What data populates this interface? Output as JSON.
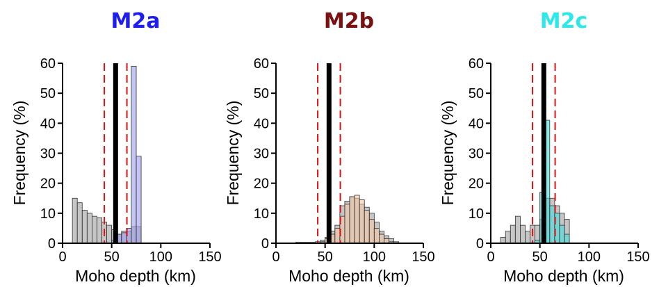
{
  "chart_data": [
    {
      "type": "bar",
      "title": "M2a",
      "title_color": "#1d1df0",
      "xlabel": "Moho depth (km)",
      "ylabel": "Frequency (%)",
      "xlim": [
        0,
        150
      ],
      "ylim": [
        0,
        60
      ],
      "xticks": [
        "0",
        "50",
        "100",
        "150"
      ],
      "yticks": [
        "0",
        "10",
        "20",
        "30",
        "40",
        "50",
        "60"
      ],
      "bin_width": 5,
      "legend": "none",
      "grid": false,
      "series": [
        {
          "color": "#a0a0a0",
          "bins": [
            [
              10,
              15
            ],
            [
              15,
              13.5
            ],
            [
              20,
              11
            ],
            [
              25,
              10
            ],
            [
              30,
              9
            ],
            [
              35,
              8.5
            ],
            [
              40,
              7
            ],
            [
              45,
              6
            ],
            [
              50,
              4.5
            ],
            [
              55,
              3
            ],
            [
              60,
              4
            ],
            [
              65,
              4
            ],
            [
              70,
              5.5
            ],
            [
              75,
              5.5
            ]
          ]
        },
        {
          "color": "#9c9cf0",
          "bins": [
            [
              50,
              1
            ],
            [
              55,
              3
            ],
            [
              60,
              3.5
            ],
            [
              65,
              5
            ],
            [
              70,
              59
            ],
            [
              75,
              29
            ]
          ]
        }
      ],
      "vlines": [
        {
          "x": 54,
          "style": "solid",
          "color": "#000000"
        },
        {
          "x": 42.5,
          "style": "dashed",
          "color": "#e01010"
        },
        {
          "x": 65.5,
          "style": "dashed",
          "color": "#e01010"
        }
      ]
    },
    {
      "type": "bar",
      "title": "M2b",
      "title_color": "#7a1010",
      "xlabel": "Moho depth (km)",
      "ylabel": "Frequency (%)",
      "xlim": [
        0,
        150
      ],
      "ylim": [
        0,
        60
      ],
      "xticks": [
        "0",
        "50",
        "100",
        "150"
      ],
      "yticks": [
        "0",
        "10",
        "20",
        "30",
        "40",
        "50",
        "60"
      ],
      "bin_width": 5,
      "legend": "none",
      "grid": false,
      "series": [
        {
          "color": "#a0a0a0",
          "bins": [
            [
              20,
              0.3
            ],
            [
              25,
              0.3
            ],
            [
              30,
              0.3
            ],
            [
              35,
              0.3
            ],
            [
              40,
              0.5
            ],
            [
              45,
              1
            ],
            [
              50,
              2
            ],
            [
              55,
              4
            ],
            [
              60,
              6
            ],
            [
              65,
              12.5
            ],
            [
              70,
              14
            ],
            [
              75,
              15.5
            ],
            [
              80,
              15
            ],
            [
              85,
              13
            ],
            [
              90,
              12
            ],
            [
              95,
              10
            ],
            [
              100,
              7
            ],
            [
              105,
              4
            ],
            [
              110,
              2.5
            ],
            [
              115,
              1.5
            ],
            [
              120,
              0.5
            ]
          ]
        },
        {
          "color": "#f5c8a5",
          "bins": [
            [
              45,
              0.5
            ],
            [
              50,
              1.5
            ],
            [
              55,
              3
            ],
            [
              60,
              5
            ],
            [
              65,
              9
            ],
            [
              70,
              13
            ],
            [
              75,
              15.5
            ],
            [
              80,
              16
            ],
            [
              85,
              14.5
            ],
            [
              90,
              11
            ],
            [
              95,
              8
            ],
            [
              100,
              5
            ],
            [
              105,
              3
            ],
            [
              110,
              1.5
            ],
            [
              115,
              0.5
            ]
          ]
        }
      ],
      "vlines": [
        {
          "x": 54,
          "style": "solid",
          "color": "#000000"
        },
        {
          "x": 42.5,
          "style": "dashed",
          "color": "#e01010"
        },
        {
          "x": 65.5,
          "style": "dashed",
          "color": "#e01010"
        }
      ]
    },
    {
      "type": "bar",
      "title": "M2c",
      "title_color": "#2de8e8",
      "xlabel": "Moho depth (km)",
      "ylabel": "Frequency (%)",
      "xlim": [
        0,
        150
      ],
      "ylim": [
        0,
        60
      ],
      "xticks": [
        "0",
        "50",
        "100",
        "150"
      ],
      "yticks": [
        "0",
        "10",
        "20",
        "30",
        "40",
        "50",
        "60"
      ],
      "bin_width": 5,
      "legend": "none",
      "grid": false,
      "series": [
        {
          "color": "#a0a0a0",
          "bins": [
            [
              10,
              2
            ],
            [
              15,
              4
            ],
            [
              20,
              6
            ],
            [
              25,
              9
            ],
            [
              30,
              6
            ],
            [
              35,
              4
            ],
            [
              40,
              6
            ],
            [
              45,
              6
            ],
            [
              50,
              8
            ],
            [
              55,
              15
            ],
            [
              60,
              15
            ],
            [
              65,
              12.5
            ],
            [
              70,
              10
            ],
            [
              75,
              8
            ]
          ]
        },
        {
          "color": "#40e0e0",
          "bins": [
            [
              45,
              1
            ],
            [
              50,
              17
            ],
            [
              55,
              41
            ],
            [
              60,
              12.5
            ],
            [
              65,
              10
            ],
            [
              70,
              6
            ],
            [
              75,
              3
            ]
          ]
        }
      ],
      "vlines": [
        {
          "x": 54,
          "style": "solid",
          "color": "#000000"
        },
        {
          "x": 42.5,
          "style": "dashed",
          "color": "#e01010"
        },
        {
          "x": 65.5,
          "style": "dashed",
          "color": "#e01010"
        }
      ]
    }
  ]
}
